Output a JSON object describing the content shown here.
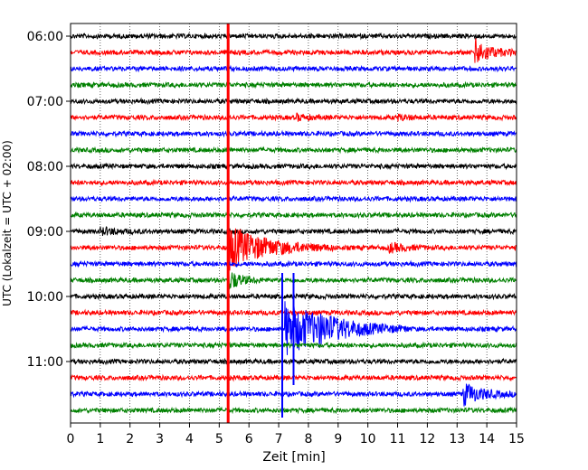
{
  "chart_data": {
    "type": "line",
    "title": "",
    "xlabel": "Zeit  [min]",
    "ylabel": "UTC (Lokalzeit = UTC + 02:00)",
    "xlim": [
      0,
      15
    ],
    "xticks": [
      0,
      1,
      2,
      3,
      4,
      5,
      6,
      7,
      8,
      9,
      10,
      11,
      12,
      13,
      14,
      15
    ],
    "y_tick_labels": [
      "06:00",
      "07:00",
      "08:00",
      "09:00",
      "10:00",
      "11:00"
    ],
    "trace_start_time": "06:00",
    "trace_interval_min": 15,
    "trace_count": 24,
    "color_cycle": [
      "#000000",
      "#ff0000",
      "#0000ff",
      "#008000"
    ],
    "vertical_grid": "dotted",
    "events": [
      {
        "trace": 1,
        "time_min": 13.6,
        "amplitude": 1.0,
        "duration": 0.5
      },
      {
        "trace": 5,
        "time_min": 7.6,
        "amplitude": 0.22,
        "duration": 0.4
      },
      {
        "trace": 5,
        "time_min": 11.0,
        "amplitude": 0.18,
        "duration": 0.4
      },
      {
        "trace": 12,
        "time_min": 1.0,
        "amplitude": 0.25,
        "duration": 0.6
      },
      {
        "trace": 13,
        "time_min": 5.3,
        "amplitude": 1.8,
        "duration": 1.2
      },
      {
        "trace": 13,
        "time_min": 10.7,
        "amplitude": 0.35,
        "duration": 0.5
      },
      {
        "trace": 15,
        "time_min": 5.3,
        "amplitude": 0.8,
        "duration": 0.4
      },
      {
        "trace": 18,
        "time_min": 7.2,
        "amplitude": 2.2,
        "duration": 1.4
      },
      {
        "trace": 18,
        "time_min": 8.3,
        "amplitude": 0.4,
        "duration": 0.8
      },
      {
        "trace": 22,
        "time_min": 13.2,
        "amplitude": 0.9,
        "duration": 0.6
      }
    ],
    "saturated_lines": [
      {
        "time_min": 5.3,
        "color": "#ff0000"
      },
      {
        "time_min": 7.12,
        "color": "#0000ff",
        "from_trace": 15,
        "to_trace": 23
      },
      {
        "time_min": 7.5,
        "color": "#0000ff",
        "from_trace": 15,
        "to_trace": 21
      }
    ]
  }
}
